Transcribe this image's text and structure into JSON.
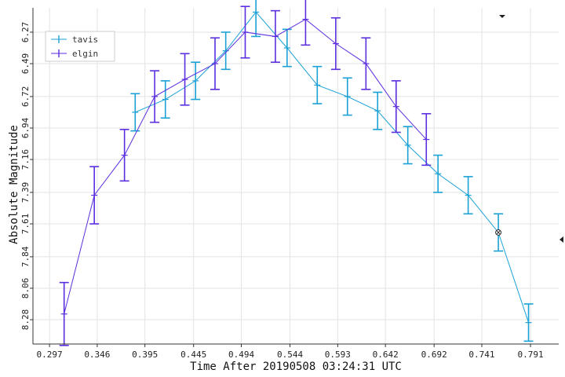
{
  "chart_data": {
    "type": "scatter",
    "xlabel": "Time After 20190508 03:24:31 UTC",
    "ylabel": "Absolute Magnitude",
    "x_ticks": [
      "0.297",
      "0.346",
      "0.395",
      "0.445",
      "0.494",
      "0.544",
      "0.593",
      "0.642",
      "0.692",
      "0.741",
      "0.791"
    ],
    "y_ticks": [
      "6.27",
      "6.49",
      "6.72",
      "6.94",
      "7.16",
      "7.39",
      "7.61",
      "7.84",
      "8.06",
      "8.28"
    ],
    "xlim": [
      0.28,
      0.82
    ],
    "ylim": [
      8.45,
      6.1
    ],
    "y_inverted": true,
    "grid": true,
    "legend_position": "top-left",
    "series": [
      {
        "name": "tavis",
        "color": "#1ba1d6",
        "x": [
          0.385,
          0.416,
          0.447,
          0.478,
          0.509,
          0.541,
          0.572,
          0.603,
          0.634,
          0.665,
          0.696,
          0.727,
          0.758,
          0.789
        ],
        "y": [
          6.83,
          6.74,
          6.61,
          6.4,
          6.13,
          6.38,
          6.64,
          6.72,
          6.82,
          7.06,
          7.26,
          7.41,
          7.67,
          8.3
        ],
        "yerr": [
          0.13,
          0.13,
          0.13,
          0.13,
          0.17,
          0.13,
          0.13,
          0.13,
          0.13,
          0.13,
          0.13,
          0.13,
          0.13,
          0.13
        ]
      },
      {
        "name": "elgin",
        "color": "#5b2ee0",
        "x": [
          0.312,
          0.343,
          0.374,
          0.405,
          0.436,
          0.467,
          0.498,
          0.529,
          0.56,
          0.591,
          0.622,
          0.653,
          0.684
        ],
        "y": [
          8.24,
          7.41,
          7.13,
          6.72,
          6.6,
          6.49,
          6.27,
          6.3,
          6.18,
          6.35,
          6.49,
          6.79,
          7.02
        ],
        "yerr": [
          0.22,
          0.2,
          0.18,
          0.18,
          0.18,
          0.18,
          0.18,
          0.18,
          0.18,
          0.18,
          0.18,
          0.18,
          0.18
        ]
      }
    ]
  }
}
